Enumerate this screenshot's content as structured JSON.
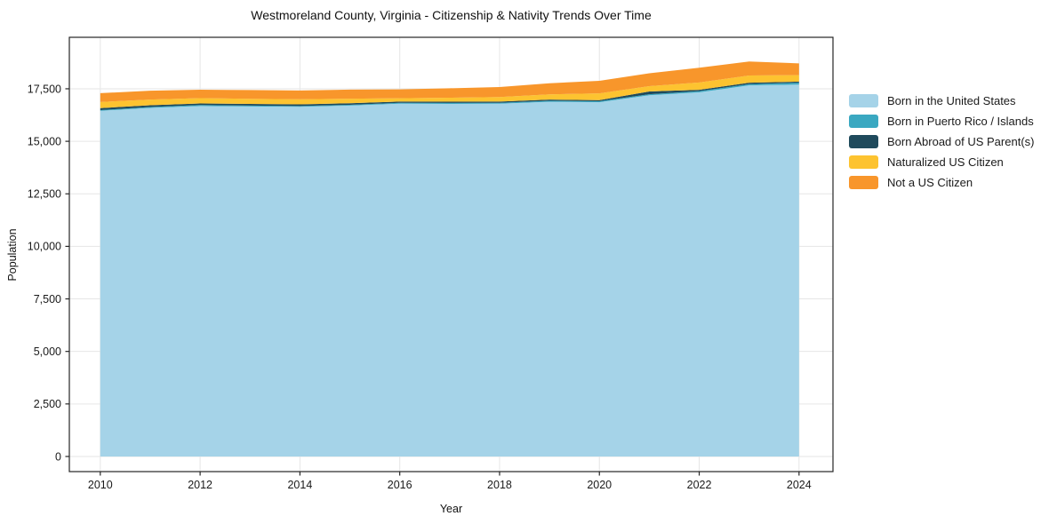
{
  "figure": {
    "title": "Westmoreland County, Virginia - Citizenship & Nativity Trends Over Time",
    "background_color": "#ffffff"
  },
  "chart_data": {
    "type": "area",
    "stacked": true,
    "title": "Westmoreland County, Virginia - Citizenship & Nativity Trends Over Time",
    "xlabel": "Year",
    "ylabel": "Population",
    "x": [
      2010,
      2011,
      2012,
      2013,
      2014,
      2015,
      2016,
      2017,
      2018,
      2019,
      2020,
      2021,
      2022,
      2023,
      2024
    ],
    "series": [
      {
        "name": "Born in the United States",
        "color": "#a5d3e8",
        "values": [
          16450,
          16590,
          16680,
          16660,
          16640,
          16700,
          16790,
          16780,
          16790,
          16880,
          16860,
          17190,
          17330,
          17660,
          17700
        ]
      },
      {
        "name": "Born in Puerto Rico / Islands",
        "color": "#3aa8c1",
        "values": [
          35,
          40,
          45,
          40,
          40,
          40,
          40,
          45,
          45,
          50,
          45,
          50,
          55,
          60,
          90
        ]
      },
      {
        "name": "Born Abroad of US Parent(s)",
        "color": "#1f4a5c",
        "values": [
          95,
          85,
          75,
          80,
          80,
          70,
          60,
          60,
          55,
          55,
          55,
          130,
          65,
          70,
          50
        ]
      },
      {
        "name": "Naturalized US Citizen",
        "color": "#fdc330",
        "values": [
          290,
          270,
          255,
          245,
          240,
          220,
          160,
          190,
          215,
          250,
          320,
          255,
          350,
          340,
          310
        ]
      },
      {
        "name": "Not a US Citizen",
        "color": "#f8962b",
        "values": [
          420,
          425,
          400,
          415,
          420,
          430,
          420,
          450,
          480,
          530,
          600,
          615,
          700,
          670,
          560
        ]
      }
    ],
    "x_ticks": [
      2010,
      2012,
      2014,
      2016,
      2018,
      2020,
      2022,
      2024
    ],
    "x_tick_labels": [
      "2010",
      "2012",
      "2014",
      "2016",
      "2018",
      "2020",
      "2022",
      "2024"
    ],
    "y_ticks": [
      0,
      2500,
      5000,
      7500,
      10000,
      12500,
      15000,
      17500
    ],
    "y_tick_labels": [
      "0",
      "2,500",
      "5,000",
      "7,500",
      "10,000",
      "12,500",
      "15,000",
      "17,500"
    ],
    "xlim": [
      2009.38,
      2024.68
    ],
    "ylim": [
      -720,
      19950
    ],
    "grid": true,
    "grid_color": "#e6e6e6",
    "axis_color": "#262626",
    "tick_label_color": "#1a1a1a",
    "legend_position": "outside-right-top"
  }
}
